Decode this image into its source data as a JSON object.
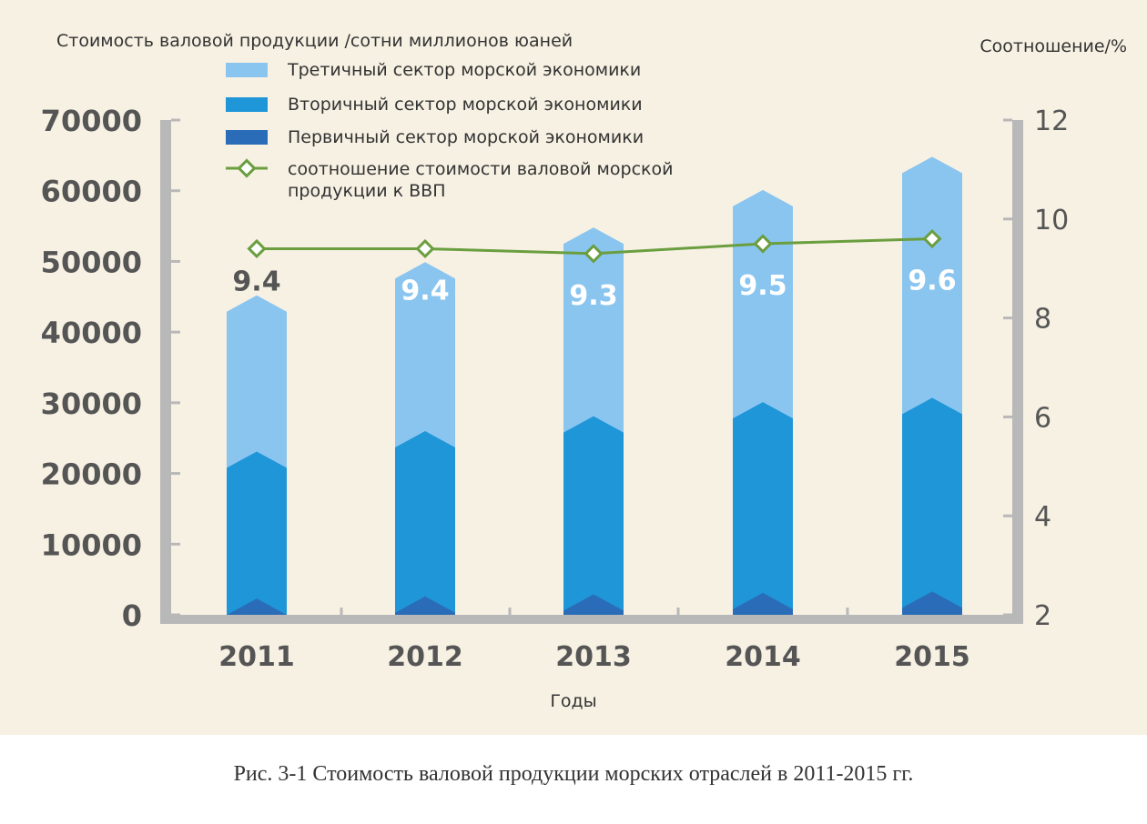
{
  "chart_data": {
    "type": "bar",
    "stacked": true,
    "left_axis_title": "Стоимость валовой продукции /сотни миллионов юаней",
    "right_axis_title": "Соотношение/%",
    "xlabel": "Годы",
    "categories": [
      "2011",
      "2012",
      "2013",
      "2014",
      "2015"
    ],
    "y_left": {
      "min": 0,
      "max": 70000,
      "ticks": [
        "0",
        "10000",
        "20000",
        "30000",
        "40000",
        "50000",
        "60000",
        "70000"
      ]
    },
    "y_right": {
      "min": 2,
      "max": 12,
      "ticks": [
        "2",
        "4",
        "6",
        "8",
        "10",
        "12"
      ]
    },
    "series": [
      {
        "name": "Первичный сектор морской экономики",
        "color": "#2b6cb8",
        "values": [
          2300,
          2600,
          2900,
          3100,
          3300
        ]
      },
      {
        "name": "Вторичный сектор морской экономики",
        "color": "#1e96d8",
        "values": [
          20800,
          23400,
          25200,
          27000,
          27400
        ]
      },
      {
        "name": "Третичный сектор морской экономики",
        "color": "#8ac5f0",
        "values": [
          22100,
          23900,
          26700,
          30000,
          34100
        ]
      }
    ],
    "line_series": {
      "name": "соотношение стоимости валовой морской продукции к ВВП",
      "color": "#6a9e3f",
      "axis": "right",
      "values": [
        9.4,
        9.4,
        9.3,
        9.5,
        9.6
      ],
      "data_labels": [
        "9.4",
        "9.4",
        "9.3",
        "9.5",
        "9.6"
      ]
    },
    "legend": {
      "placement": "top",
      "items": [
        {
          "label": "Третичный сектор морской экономики",
          "kind": "bar",
          "color": "#8ac5f0"
        },
        {
          "label": "Вторичный сектор морской экономики",
          "kind": "bar",
          "color": "#1e96d8"
        },
        {
          "label": "Первичный сектор морской экономики",
          "kind": "bar",
          "color": "#2b6cb8"
        },
        {
          "label": "соотношение стоимости валовой морской продукции к ВВП",
          "kind": "line",
          "color": "#6a9e3f"
        }
      ]
    },
    "grid": false,
    "colors": {
      "background": "#f7f1e3",
      "axis": "#b8b8b8",
      "tick_text": "#555555",
      "data_label_dark": "#555555",
      "data_label_light": "#ffffff"
    }
  },
  "caption": "Рис. 3-1 Стоимость валовой продукции морских отраслей в 2011-2015 гг."
}
